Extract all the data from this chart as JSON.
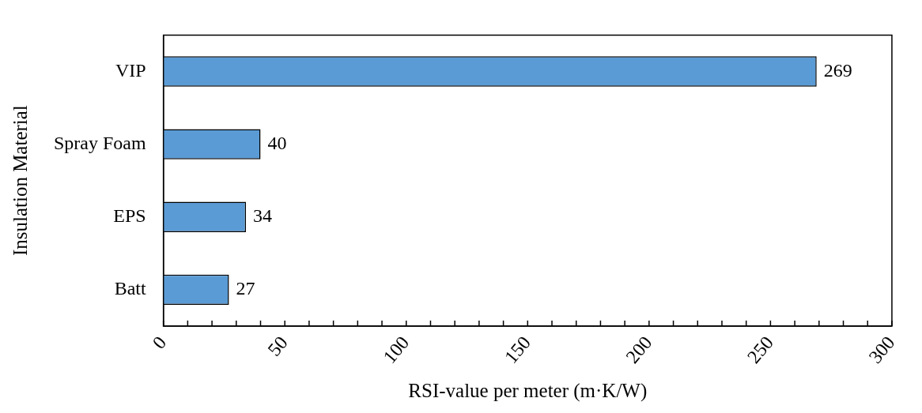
{
  "chart_data": {
    "type": "bar",
    "orientation": "horizontal",
    "xlabel": "RSI-value per meter (m·K/W)",
    "ylabel": "Insulation Material",
    "categories": [
      "VIP",
      "Spray Foam",
      "EPS",
      "Batt"
    ],
    "values": [
      269,
      40,
      34,
      27
    ],
    "color": "#5b9bd5",
    "data_labels": true,
    "grid": false,
    "legend": false,
    "xlim": [
      0,
      300
    ],
    "xticks": [
      0,
      {
        "value": 10,
        "label": null
      },
      {
        "value": 20,
        "label": null
      },
      {
        "value": 30,
        "label": null
      },
      {
        "value": 40,
        "label": null
      },
      50,
      {
        "value": 60,
        "label": null
      },
      {
        "value": 70,
        "label": null
      },
      {
        "value": 80,
        "label": null
      },
      {
        "value": 90,
        "label": null
      },
      100,
      {
        "value": 110,
        "label": null
      },
      {
        "value": 120,
        "label": null
      },
      {
        "value": 130,
        "label": null
      },
      {
        "value": 140,
        "label": null
      },
      150,
      {
        "value": 160,
        "label": null
      },
      {
        "value": 170,
        "label": null
      },
      {
        "value": 180,
        "label": null
      },
      {
        "value": 190,
        "label": null
      },
      200,
      {
        "value": 210,
        "label": null
      },
      {
        "value": 220,
        "label": null
      },
      {
        "value": 230,
        "label": null
      },
      {
        "value": 240,
        "label": null
      },
      250,
      {
        "value": 260,
        "label": null
      },
      {
        "value": 270,
        "label": null
      },
      {
        "value": 280,
        "label": null
      },
      {
        "value": 290,
        "label": null
      },
      300
    ]
  }
}
